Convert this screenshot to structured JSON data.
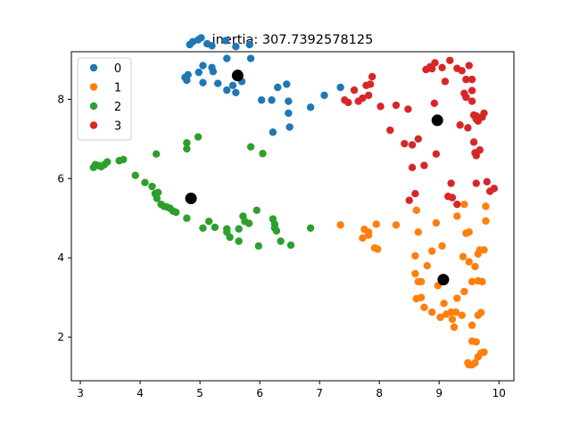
{
  "chart_data": {
    "type": "scatter",
    "title": "inertia: 307.7392578125",
    "xlabel": "",
    "ylabel": "",
    "xlim": [
      2.85,
      10.25
    ],
    "ylim": [
      0.9,
      9.2
    ],
    "xticks": [
      3,
      4,
      5,
      6,
      7,
      8,
      9,
      10
    ],
    "yticks": [
      2,
      4,
      6,
      8
    ],
    "grid": false,
    "legend_position": "top-left",
    "series": [
      {
        "name": "0",
        "color": "#1f77b4",
        "points": [
          [
            4.83,
            9.38
          ],
          [
            4.88,
            9.45
          ],
          [
            4.97,
            9.5
          ],
          [
            5.02,
            9.55
          ],
          [
            5.12,
            9.4
          ],
          [
            5.2,
            9.35
          ],
          [
            5.43,
            9.48
          ],
          [
            5.6,
            9.33
          ],
          [
            5.83,
            9.38
          ],
          [
            5.85,
            9.03
          ],
          [
            5.45,
            9.03
          ],
          [
            5.2,
            8.8
          ],
          [
            5.05,
            8.85
          ],
          [
            4.98,
            8.68
          ],
          [
            4.8,
            8.62
          ],
          [
            4.75,
            8.55
          ],
          [
            4.78,
            8.48
          ],
          [
            5.05,
            8.42
          ],
          [
            5.22,
            8.7
          ],
          [
            5.3,
            8.4
          ],
          [
            5.45,
            8.23
          ],
          [
            5.55,
            8.35
          ],
          [
            5.6,
            8.17
          ],
          [
            5.65,
            8.65
          ],
          [
            5.7,
            8.45
          ],
          [
            6.03,
            7.98
          ],
          [
            6.2,
            7.98
          ],
          [
            6.3,
            8.3
          ],
          [
            6.45,
            8.38
          ],
          [
            6.48,
            7.95
          ],
          [
            6.48,
            7.65
          ],
          [
            6.5,
            7.3
          ],
          [
            6.22,
            7.17
          ],
          [
            6.85,
            7.8
          ],
          [
            7.08,
            8.1
          ],
          [
            7.35,
            8.3
          ]
        ]
      },
      {
        "name": "1",
        "color": "#ff7f0e",
        "points": [
          [
            7.35,
            4.83
          ],
          [
            7.72,
            4.5
          ],
          [
            7.75,
            4.72
          ],
          [
            7.82,
            4.57
          ],
          [
            7.82,
            4.65
          ],
          [
            7.92,
            4.25
          ],
          [
            7.95,
            4.85
          ],
          [
            7.97,
            4.22
          ],
          [
            8.28,
            4.83
          ],
          [
            8.62,
            5.2
          ],
          [
            8.65,
            4.65
          ],
          [
            8.6,
            4.05
          ],
          [
            8.6,
            3.6
          ],
          [
            8.65,
            3.4
          ],
          [
            8.7,
            3.4
          ],
          [
            8.7,
            3.0
          ],
          [
            8.62,
            2.97
          ],
          [
            8.75,
            2.75
          ],
          [
            8.88,
            2.63
          ],
          [
            8.8,
            3.8
          ],
          [
            8.88,
            4.17
          ],
          [
            8.95,
            4.88
          ],
          [
            8.98,
            3.3
          ],
          [
            9.02,
            2.5
          ],
          [
            9.08,
            2.85
          ],
          [
            9.12,
            2.58
          ],
          [
            9.2,
            2.63
          ],
          [
            9.22,
            2.45
          ],
          [
            9.25,
            2.25
          ],
          [
            9.28,
            2.63
          ],
          [
            9.3,
            2.98
          ],
          [
            9.38,
            2.55
          ],
          [
            9.42,
            3.15
          ],
          [
            9.4,
            4.03
          ],
          [
            9.45,
            4.62
          ],
          [
            9.5,
            4.65
          ],
          [
            9.42,
            5.35
          ],
          [
            9.5,
            3.9
          ],
          [
            9.55,
            3.4
          ],
          [
            9.6,
            3.78
          ],
          [
            9.65,
            4.1
          ],
          [
            9.68,
            4.2
          ],
          [
            9.65,
            3.42
          ],
          [
            9.72,
            3.4
          ],
          [
            9.75,
            4.2
          ],
          [
            9.78,
            4.93
          ],
          [
            9.78,
            5.3
          ],
          [
            9.55,
            2.3
          ],
          [
            9.55,
            1.9
          ],
          [
            9.62,
            1.88
          ],
          [
            9.65,
            2.55
          ],
          [
            9.7,
            2.62
          ],
          [
            9.48,
            1.35
          ],
          [
            9.5,
            1.3
          ],
          [
            9.55,
            1.3
          ],
          [
            9.6,
            1.35
          ],
          [
            9.65,
            1.5
          ],
          [
            9.7,
            1.6
          ],
          [
            9.75,
            1.62
          ],
          [
            9.3,
            5.05
          ],
          [
            9.05,
            4.3
          ]
        ]
      },
      {
        "name": "2",
        "color": "#2ca02c",
        "points": [
          [
            3.22,
            6.28
          ],
          [
            3.25,
            6.35
          ],
          [
            3.3,
            6.33
          ],
          [
            3.35,
            6.3
          ],
          [
            3.4,
            6.35
          ],
          [
            3.45,
            6.42
          ],
          [
            3.65,
            6.45
          ],
          [
            3.72,
            6.48
          ],
          [
            3.92,
            6.08
          ],
          [
            4.08,
            5.9
          ],
          [
            4.2,
            5.8
          ],
          [
            4.25,
            5.62
          ],
          [
            4.28,
            5.5
          ],
          [
            4.3,
            5.65
          ],
          [
            4.35,
            5.35
          ],
          [
            4.4,
            5.3
          ],
          [
            4.45,
            5.28
          ],
          [
            4.5,
            5.25
          ],
          [
            4.55,
            5.18
          ],
          [
            4.6,
            5.15
          ],
          [
            4.27,
            6.62
          ],
          [
            4.78,
            6.9
          ],
          [
            4.78,
            6.75
          ],
          [
            4.97,
            7.05
          ],
          [
            4.78,
            5.0
          ],
          [
            5.05,
            4.75
          ],
          [
            5.15,
            4.92
          ],
          [
            5.25,
            4.77
          ],
          [
            5.45,
            4.65
          ],
          [
            5.45,
            4.73
          ],
          [
            5.5,
            4.52
          ],
          [
            5.65,
            4.42
          ],
          [
            5.65,
            4.73
          ],
          [
            5.72,
            5.05
          ],
          [
            5.75,
            4.92
          ],
          [
            5.82,
            4.87
          ],
          [
            5.85,
            6.8
          ],
          [
            5.95,
            5.2
          ],
          [
            5.98,
            4.3
          ],
          [
            6.05,
            6.63
          ],
          [
            6.22,
            4.98
          ],
          [
            6.25,
            4.75
          ],
          [
            6.28,
            4.68
          ],
          [
            6.35,
            4.42
          ],
          [
            6.52,
            4.32
          ],
          [
            6.85,
            4.75
          ],
          [
            6.25,
            4.85
          ]
        ]
      },
      {
        "name": "3",
        "color": "#d62728",
        "points": [
          [
            7.42,
            7.98
          ],
          [
            7.48,
            7.92
          ],
          [
            7.58,
            8.23
          ],
          [
            7.65,
            7.95
          ],
          [
            7.72,
            8.03
          ],
          [
            7.78,
            8.35
          ],
          [
            7.82,
            8.1
          ],
          [
            7.85,
            8.38
          ],
          [
            7.88,
            8.57
          ],
          [
            8.02,
            7.82
          ],
          [
            8.18,
            7.22
          ],
          [
            8.28,
            7.85
          ],
          [
            8.42,
            6.88
          ],
          [
            8.48,
            7.75
          ],
          [
            8.5,
            5.45
          ],
          [
            8.55,
            6.28
          ],
          [
            8.55,
            6.85
          ],
          [
            8.6,
            5.62
          ],
          [
            8.65,
            7.0
          ],
          [
            8.75,
            6.33
          ],
          [
            8.78,
            8.75
          ],
          [
            8.85,
            8.82
          ],
          [
            8.88,
            8.77
          ],
          [
            8.93,
            8.92
          ],
          [
            8.92,
            7.9
          ],
          [
            8.95,
            6.62
          ],
          [
            9.05,
            8.8
          ],
          [
            9.1,
            8.45
          ],
          [
            9.15,
            5.55
          ],
          [
            9.18,
            8.98
          ],
          [
            9.2,
            5.88
          ],
          [
            9.22,
            5.52
          ],
          [
            9.3,
            8.78
          ],
          [
            9.35,
            7.35
          ],
          [
            9.38,
            8.72
          ],
          [
            9.42,
            8.15
          ],
          [
            9.45,
            8.05
          ],
          [
            9.45,
            8.5
          ],
          [
            9.48,
            7.28
          ],
          [
            9.5,
            8.85
          ],
          [
            9.55,
            8.22
          ],
          [
            9.55,
            8.5
          ],
          [
            9.55,
            7.95
          ],
          [
            9.58,
            6.92
          ],
          [
            9.6,
            6.65
          ],
          [
            9.62,
            7.5
          ],
          [
            9.62,
            7.58
          ],
          [
            9.65,
            7.45
          ],
          [
            9.68,
            6.72
          ],
          [
            9.62,
            6.58
          ],
          [
            9.72,
            7.55
          ],
          [
            9.75,
            7.65
          ],
          [
            9.62,
            5.88
          ],
          [
            9.8,
            5.92
          ],
          [
            9.85,
            5.68
          ],
          [
            9.92,
            5.75
          ],
          [
            9.3,
            5.35
          ],
          [
            9.58,
            7.6
          ]
        ]
      }
    ],
    "centroids": {
      "color": "#000000",
      "points": [
        [
          5.63,
          8.6
        ],
        [
          9.07,
          3.45
        ],
        [
          4.85,
          5.5
        ],
        [
          8.97,
          7.47
        ]
      ]
    }
  }
}
